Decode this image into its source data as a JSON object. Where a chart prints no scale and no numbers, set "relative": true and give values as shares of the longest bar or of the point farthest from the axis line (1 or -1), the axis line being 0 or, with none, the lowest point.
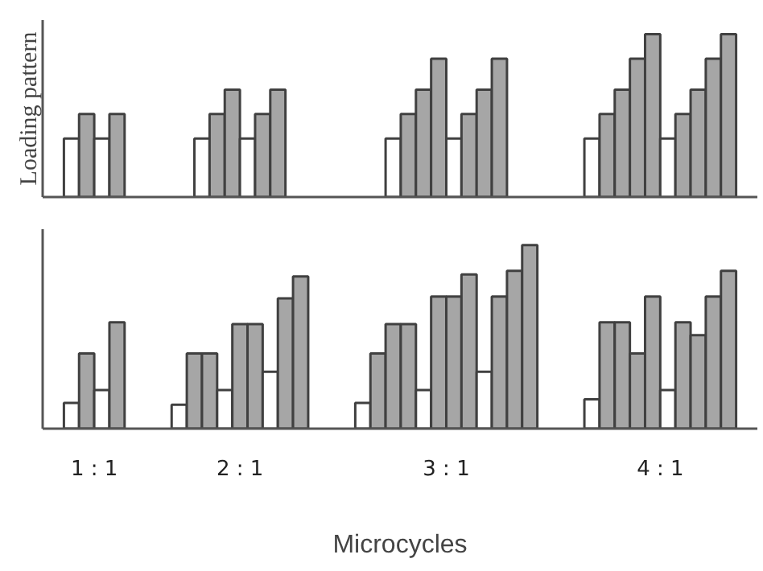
{
  "chart_data": [
    {
      "type": "bar",
      "relative": true,
      "ylabel": "Loading pattern",
      "tick_labels": false,
      "categories": [
        "1 : 1",
        "2 : 1",
        "3 : 1",
        "4 : 1"
      ],
      "series": [
        {
          "values": [
            0.36,
            0.36,
            0.36,
            0.36
          ],
          "colors": [
            "#ffffff",
            "#ffffff",
            "#ffffff",
            "#ffffff"
          ]
        },
        {
          "values": [
            0.51,
            0.51,
            0.51,
            0.51
          ],
          "colors": [
            "#a6a6a6",
            "#a6a6a6",
            "#a6a6a6",
            "#a6a6a6"
          ]
        },
        {
          "values": [
            0.36,
            0.66,
            0.66,
            0.66
          ],
          "colors": [
            "#ffffff",
            "#a6a6a6",
            "#a6a6a6",
            "#a6a6a6"
          ]
        },
        {
          "values": [
            0.51,
            0.36,
            0.85,
            0.85
          ],
          "colors": [
            "#a6a6a6",
            "#ffffff",
            "#a6a6a6",
            "#a6a6a6"
          ]
        },
        {
          "values": [
            null,
            0.51,
            0.36,
            1
          ],
          "colors": [
            null,
            "#a6a6a6",
            "#ffffff",
            "#a6a6a6"
          ]
        },
        {
          "values": [
            null,
            0.66,
            0.51,
            0.36
          ],
          "colors": [
            null,
            "#a6a6a6",
            "#a6a6a6",
            "#ffffff"
          ]
        },
        {
          "values": [
            null,
            null,
            0.66,
            0.51
          ],
          "colors": [
            null,
            null,
            "#a6a6a6",
            "#a6a6a6"
          ]
        },
        {
          "values": [
            null,
            null,
            0.85,
            0.66
          ],
          "colors": [
            null,
            null,
            "#a6a6a6",
            "#a6a6a6"
          ]
        },
        {
          "values": [
            null,
            null,
            null,
            0.85
          ],
          "colors": [
            null,
            null,
            null,
            "#a6a6a6"
          ]
        },
        {
          "values": [
            null,
            null,
            null,
            1
          ],
          "colors": [
            null,
            null,
            null,
            "#a6a6a6"
          ]
        }
      ]
    },
    {
      "type": "bar",
      "relative": true,
      "xlabel": "Microcycles",
      "categories": [
        "1 : 1",
        "2 : 1",
        "3 : 1",
        "4 : 1"
      ],
      "series": [
        {
          "values": [
            0.14,
            0.13,
            0.14,
            0.16
          ],
          "colors": [
            "#ffffff",
            "#ffffff",
            "#ffffff",
            "#ffffff"
          ]
        },
        {
          "values": [
            0.41,
            0.41,
            0.41,
            0.58
          ],
          "colors": [
            "#a6a6a6",
            "#a6a6a6",
            "#a6a6a6",
            "#a6a6a6"
          ]
        },
        {
          "values": [
            0.21,
            0.41,
            0.57,
            0.58
          ],
          "colors": [
            "#ffffff",
            "#a6a6a6",
            "#a6a6a6",
            "#a6a6a6"
          ]
        },
        {
          "values": [
            0.58,
            0.21,
            0.57,
            0.41
          ],
          "colors": [
            "#a6a6a6",
            "#ffffff",
            "#a6a6a6",
            "#a6a6a6"
          ]
        },
        {
          "values": [
            null,
            0.57,
            0.21,
            0.72
          ],
          "colors": [
            null,
            "#a6a6a6",
            "#ffffff",
            "#a6a6a6"
          ]
        },
        {
          "values": [
            null,
            0.57,
            0.72,
            0.21
          ],
          "colors": [
            null,
            "#a6a6a6",
            "#a6a6a6",
            "#ffffff"
          ]
        },
        {
          "values": [
            null,
            0.31,
            0.72,
            0.58
          ],
          "colors": [
            null,
            "#ffffff",
            "#a6a6a6",
            "#a6a6a6"
          ]
        },
        {
          "values": [
            null,
            0.71,
            0.84,
            0.51
          ],
          "colors": [
            null,
            "#a6a6a6",
            "#a6a6a6",
            "#a6a6a6"
          ]
        },
        {
          "values": [
            null,
            0.83,
            0.31,
            0.72
          ],
          "colors": [
            null,
            "#a6a6a6",
            "#ffffff",
            "#a6a6a6"
          ]
        },
        {
          "values": [
            null,
            null,
            0.72,
            0.86
          ],
          "colors": [
            null,
            null,
            "#a6a6a6",
            "#a6a6a6"
          ]
        },
        {
          "values": [
            null,
            null,
            0.86,
            null
          ],
          "colors": [
            null,
            null,
            "#a6a6a6",
            null
          ]
        },
        {
          "values": [
            null,
            null,
            1,
            null
          ],
          "colors": [
            null,
            null,
            "#a6a6a6",
            null
          ]
        }
      ]
    }
  ]
}
